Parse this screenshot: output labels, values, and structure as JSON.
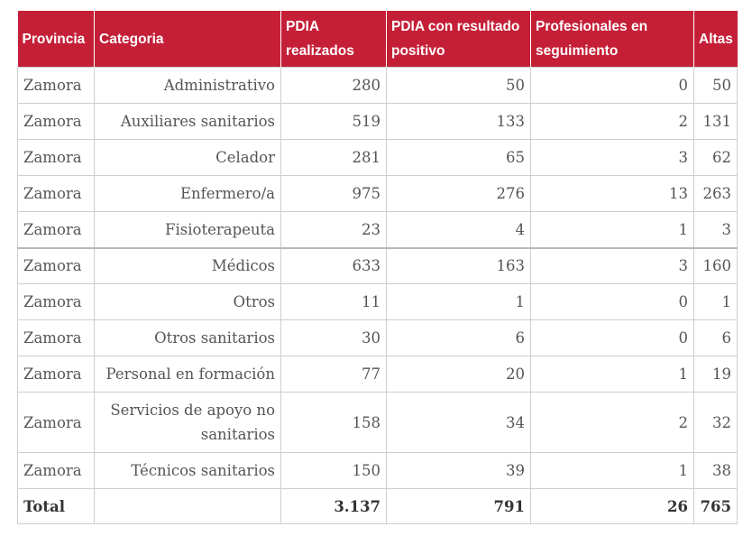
{
  "table": {
    "headers": {
      "provincia": "Provincia",
      "categoria": "Categoria",
      "pdia_realizados": "PDIA realizados",
      "pdia_positivo": "PDIA con resultado positivo",
      "profesionales": "Profesionales en seguimiento",
      "altas": "Altas"
    },
    "rows": [
      {
        "provincia": "Zamora",
        "categoria": "Administrativo",
        "pdia": "280",
        "positivo": "50",
        "seguimiento": "0",
        "altas": "50"
      },
      {
        "provincia": "Zamora",
        "categoria": "Auxiliares sanitarios",
        "pdia": "519",
        "positivo": "133",
        "seguimiento": "2",
        "altas": "131"
      },
      {
        "provincia": "Zamora",
        "categoria": "Celador",
        "pdia": "281",
        "positivo": "65",
        "seguimiento": "3",
        "altas": "62"
      },
      {
        "provincia": "Zamora",
        "categoria": "Enfermero/a",
        "pdia": "975",
        "positivo": "276",
        "seguimiento": "13",
        "altas": "263"
      },
      {
        "provincia": "Zamora",
        "categoria": "Fisioterapeuta",
        "pdia": "23",
        "positivo": "4",
        "seguimiento": "1",
        "altas": "3"
      },
      {
        "provincia": "Zamora",
        "categoria": "Médicos",
        "pdia": "633",
        "positivo": "163",
        "seguimiento": "3",
        "altas": "160"
      },
      {
        "provincia": "Zamora",
        "categoria": "Otros",
        "pdia": "11",
        "positivo": "1",
        "seguimiento": "0",
        "altas": "1"
      },
      {
        "provincia": "Zamora",
        "categoria": "Otros sanitarios",
        "pdia": "30",
        "positivo": "6",
        "seguimiento": "0",
        "altas": "6"
      },
      {
        "provincia": "Zamora",
        "categoria": "Personal en formación",
        "pdia": "77",
        "positivo": "20",
        "seguimiento": "1",
        "altas": "19"
      },
      {
        "provincia": "Zamora",
        "categoria": "Servicios de apoyo no sanitarios",
        "pdia": "158",
        "positivo": "34",
        "seguimiento": "2",
        "altas": "32"
      },
      {
        "provincia": "Zamora",
        "categoria": "Técnicos sanitarios",
        "pdia": "150",
        "positivo": "39",
        "seguimiento": "1",
        "altas": "38"
      }
    ],
    "total": {
      "label": "Total",
      "categoria": "",
      "pdia": "3.137",
      "positivo": "791",
      "seguimiento": "26",
      "altas": "765"
    },
    "colors": {
      "header_bg": "#c51f38",
      "header_text": "#ffffff",
      "body_text": "#555555",
      "border": "#cfcfcf"
    }
  }
}
